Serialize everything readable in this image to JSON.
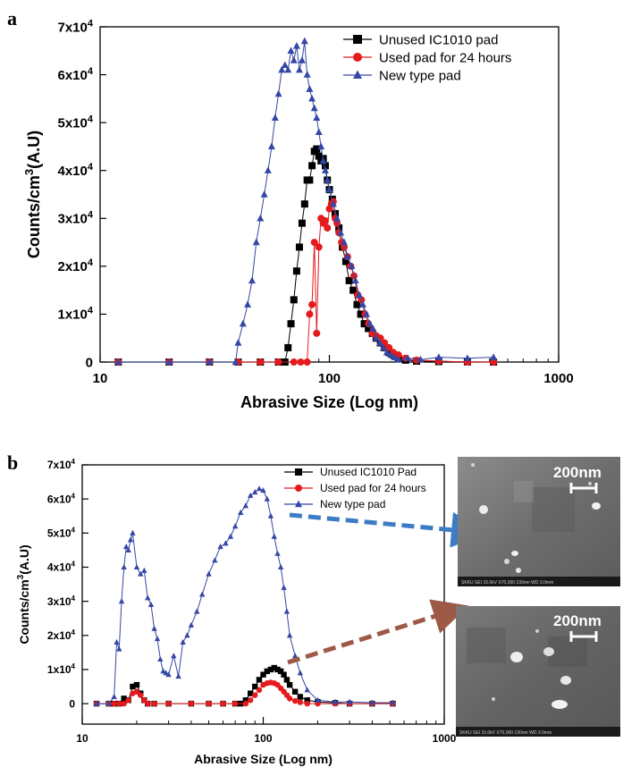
{
  "figure": {
    "panel_a_letter": "a",
    "panel_b_letter": "b"
  },
  "colors": {
    "black_series": "#000000",
    "red_series": "#e41a1c",
    "blue_series": "#3547a6",
    "arrow_blue": "#3d7cc4",
    "arrow_brown": "#9c5a47"
  },
  "chart_data": [
    {
      "panel": "a",
      "type": "line",
      "x_scale": "log",
      "xlim": [
        10,
        1000
      ],
      "ylim": [
        0,
        70000
      ],
      "xlabel": "Abrasive Size (Log nm)",
      "ylabel": "Counts/cm³(A.U)",
      "x_ticks": [
        {
          "value": 10,
          "label": "10"
        },
        {
          "value": 100,
          "label": "100"
        },
        {
          "value": 1000,
          "label": "1000"
        }
      ],
      "y_ticks": [
        {
          "value": 0,
          "label": "0"
        },
        {
          "value": 10000,
          "label": "1x10⁴"
        },
        {
          "value": 20000,
          "label": "2x10⁴"
        },
        {
          "value": 30000,
          "label": "3x10⁴"
        },
        {
          "value": 40000,
          "label": "4x10⁴"
        },
        {
          "value": 50000,
          "label": "5x10⁴"
        },
        {
          "value": 60000,
          "label": "6x10⁴"
        },
        {
          "value": 70000,
          "label": "7x10⁴"
        }
      ],
      "legend_position": "top-right",
      "grid": false,
      "series": [
        {
          "name": "Unused IC1010 pad",
          "marker": "square",
          "color": "#000000",
          "x": [
            12,
            20,
            30,
            40,
            50,
            60,
            64,
            66,
            68,
            70,
            72,
            74,
            76,
            78,
            80,
            82,
            84,
            86,
            88,
            90,
            92,
            94,
            96,
            98,
            100,
            103,
            106,
            110,
            114,
            118,
            122,
            127,
            132,
            137,
            142,
            148,
            154,
            160,
            167,
            174,
            182,
            190,
            200,
            215,
            240,
            300,
            400,
            520
          ],
          "y": [
            0,
            0,
            0,
            0,
            0,
            0,
            0,
            3000,
            8000,
            13000,
            19000,
            24000,
            29000,
            33000,
            38000,
            38000,
            41000,
            44000,
            44500,
            43000,
            42000,
            42500,
            41000,
            38000,
            36000,
            34000,
            31000,
            28000,
            24000,
            21000,
            17000,
            15000,
            12000,
            10000,
            8000,
            7000,
            6000,
            5000,
            4000,
            3000,
            2000,
            1500,
            800,
            400,
            200,
            100,
            50,
            0
          ]
        },
        {
          "name": "Used pad for 24 hours",
          "marker": "circle",
          "color": "#e41a1c",
          "x": [
            12,
            20,
            30,
            40,
            50,
            60,
            70,
            75,
            80,
            82,
            84,
            86,
            88,
            90,
            92,
            94,
            96,
            98,
            100,
            102,
            104,
            106,
            108,
            110,
            113,
            116,
            120,
            124,
            128,
            133,
            138,
            143,
            148,
            154,
            160,
            167,
            174,
            182,
            190,
            200,
            215,
            240,
            300,
            400,
            520
          ],
          "y": [
            0,
            0,
            0,
            0,
            0,
            0,
            0,
            0,
            0,
            10000,
            12000,
            25000,
            6000,
            24000,
            30000,
            29000,
            29500,
            28000,
            32000,
            33000,
            33500,
            30000,
            29000,
            27000,
            25000,
            24000,
            22000,
            20000,
            18000,
            14000,
            13000,
            10000,
            8000,
            6000,
            5500,
            5000,
            4000,
            3000,
            2000,
            1500,
            800,
            400,
            200,
            0,
            0
          ]
        },
        {
          "name": "New type pad",
          "marker": "triangle",
          "color": "#3547a6",
          "x": [
            12,
            20,
            30,
            39,
            40,
            42,
            44,
            46,
            48,
            50,
            52,
            54,
            56,
            58,
            60,
            62,
            64,
            66,
            68,
            70,
            72,
            74,
            76,
            78,
            80,
            82,
            84,
            86,
            88,
            90,
            92,
            94,
            96,
            98,
            100,
            104,
            108,
            112,
            116,
            120,
            125,
            130,
            135,
            140,
            145,
            150,
            155,
            160,
            166,
            172,
            178,
            185,
            192,
            200,
            220,
            250,
            300,
            400,
            520
          ],
          "y": [
            0,
            0,
            0,
            0,
            4000,
            8000,
            12000,
            17000,
            25000,
            30000,
            35000,
            40000,
            45000,
            51000,
            56000,
            61000,
            62000,
            61000,
            65000,
            63000,
            66000,
            61000,
            63000,
            67000,
            60000,
            57000,
            55000,
            53000,
            51000,
            48000,
            45000,
            42000,
            40000,
            38000,
            36000,
            33000,
            30000,
            27000,
            25000,
            22000,
            20000,
            17000,
            14000,
            12000,
            10000,
            8000,
            7000,
            5000,
            4000,
            3000,
            2000,
            1500,
            1000,
            500,
            800,
            500,
            1000,
            800,
            1000
          ]
        }
      ]
    },
    {
      "panel": "b",
      "type": "line",
      "x_scale": "log",
      "xlim": [
        10,
        1000
      ],
      "ylim": [
        -6000,
        70000
      ],
      "xlabel": "Abrasive Size (Log nm)",
      "ylabel": "Counts/cm³(A.U)",
      "x_ticks": [
        {
          "value": 10,
          "label": "10"
        },
        {
          "value": 100,
          "label": "100"
        },
        {
          "value": 1000,
          "label": "1000"
        }
      ],
      "y_ticks": [
        {
          "value": 0,
          "label": "0"
        },
        {
          "value": 10000,
          "label": "1x10⁴"
        },
        {
          "value": 20000,
          "label": "2x10⁴"
        },
        {
          "value": 30000,
          "label": "3x10⁴"
        },
        {
          "value": 40000,
          "label": "4x10⁴"
        },
        {
          "value": 50000,
          "label": "5x10⁴"
        },
        {
          "value": 60000,
          "label": "6x10⁴"
        },
        {
          "value": 70000,
          "label": "7x10⁴"
        }
      ],
      "legend_position": "top-right",
      "grid": false,
      "series": [
        {
          "name": "Unused IC1010 Pad",
          "marker": "square",
          "color": "#000000",
          "x": [
            12,
            14,
            15,
            16,
            17,
            18,
            19,
            20,
            21,
            22,
            23,
            25,
            30,
            40,
            50,
            60,
            70,
            75,
            80,
            85,
            90,
            95,
            100,
            105,
            110,
            115,
            120,
            125,
            130,
            135,
            140,
            150,
            160,
            175,
            200,
            250,
            300,
            400,
            520
          ],
          "y": [
            0,
            0,
            0,
            0,
            1500,
            1000,
            5000,
            5500,
            3000,
            1000,
            0,
            0,
            0,
            0,
            0,
            0,
            0,
            0,
            1000,
            3000,
            5000,
            7000,
            8500,
            9500,
            10000,
            10500,
            10000,
            9500,
            8500,
            7000,
            5500,
            3500,
            2000,
            1000,
            500,
            200,
            0,
            0,
            0
          ]
        },
        {
          "name": "Used pad for 24 hours",
          "marker": "circle",
          "color": "#e41a1c",
          "x": [
            12,
            14,
            15,
            16,
            17,
            18,
            19,
            20,
            21,
            22,
            23,
            25,
            30,
            40,
            50,
            60,
            70,
            80,
            85,
            90,
            95,
            100,
            105,
            110,
            115,
            120,
            125,
            130,
            135,
            140,
            150,
            160,
            175,
            200,
            250,
            300,
            400,
            520
          ],
          "y": [
            0,
            0,
            0,
            0,
            0,
            1000,
            3000,
            3500,
            2500,
            1000,
            0,
            0,
            0,
            0,
            0,
            0,
            0,
            0,
            1000,
            2500,
            4000,
            5500,
            6000,
            6200,
            6000,
            5500,
            4500,
            3500,
            2500,
            1500,
            800,
            400,
            0,
            0,
            0,
            0,
            0,
            0
          ]
        },
        {
          "name": "New type pad",
          "marker": "triangle",
          "color": "#3547a6",
          "x": [
            12,
            14,
            15,
            15.5,
            16,
            16.5,
            17,
            17.5,
            18,
            18.5,
            19,
            20,
            21,
            22,
            23,
            24,
            25,
            26,
            27,
            28,
            29,
            30,
            32,
            34,
            36,
            38,
            40,
            43,
            46,
            50,
            54,
            58,
            62,
            66,
            70,
            75,
            80,
            85,
            90,
            95,
            100,
            105,
            110,
            115,
            120,
            125,
            130,
            135,
            140,
            150,
            160,
            175,
            200,
            250,
            300,
            400,
            520
          ],
          "y": [
            0,
            0,
            2000,
            18000,
            16000,
            30000,
            40000,
            46000,
            45000,
            48000,
            50000,
            40000,
            38000,
            39000,
            31000,
            29000,
            22000,
            19000,
            13000,
            9500,
            9000,
            8500,
            14000,
            8000,
            18000,
            20000,
            23000,
            27000,
            32000,
            38000,
            42000,
            46000,
            47000,
            49000,
            52000,
            56000,
            58000,
            61000,
            62000,
            63000,
            62500,
            60000,
            55000,
            49000,
            44000,
            40000,
            34000,
            27000,
            20000,
            14000,
            9000,
            4000,
            1000,
            500,
            500,
            300,
            300
          ]
        }
      ]
    }
  ],
  "sem_images": [
    {
      "scale_label": "200nm",
      "footer": "SKKU   SEI   15.0kV  X70,000   100nm   WD 3.0mm"
    },
    {
      "scale_label": "200nm",
      "footer": "SKKU   SEI   15.0kV  X70,000   100nm   WD 3.0mm"
    }
  ]
}
